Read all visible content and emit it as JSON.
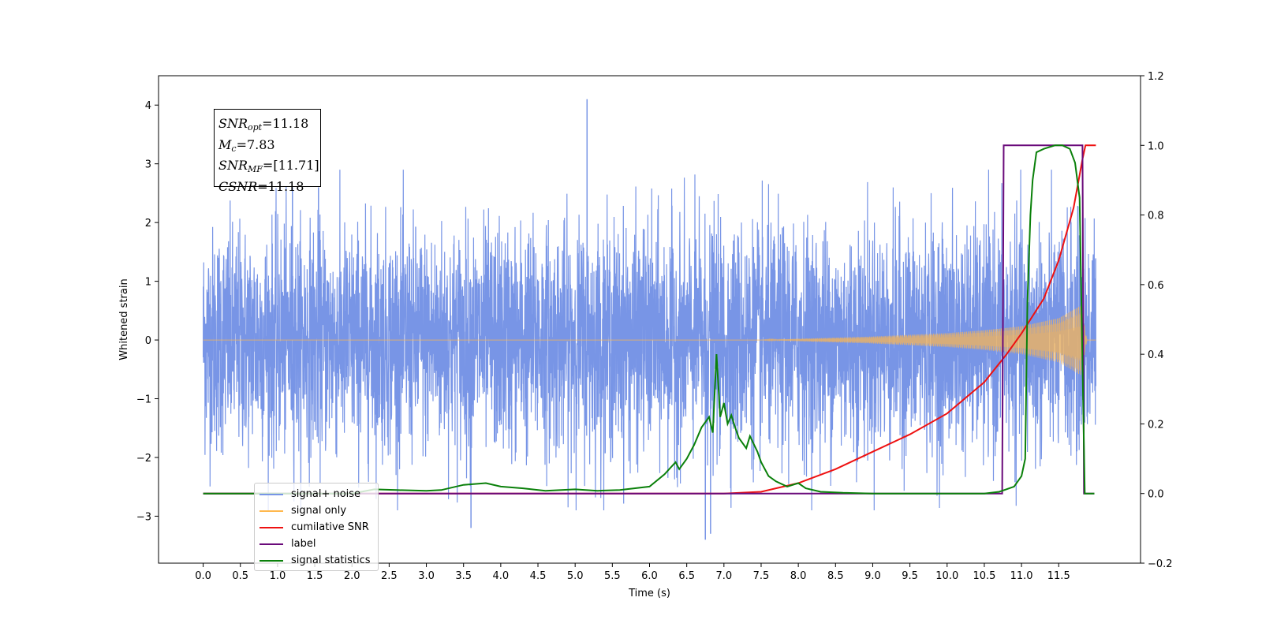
{
  "chart_data": {
    "type": "line",
    "xlabel": "Time (s)",
    "ylabel": "Whitened strain",
    "x_ticks": [
      "0.0",
      "0.5",
      "1.0",
      "1.5",
      "2.0",
      "2.5",
      "3.0",
      "3.5",
      "4.0",
      "4.5",
      "5.0",
      "5.5",
      "6.0",
      "6.5",
      "7.0",
      "7.5",
      "8.0",
      "8.5",
      "9.0",
      "9.5",
      "10.0",
      "10.5",
      "11.0",
      "11.5"
    ],
    "y_left_ticks": [
      "4",
      "3",
      "2",
      "1",
      "0",
      "−1",
      "−2",
      "−3"
    ],
    "y_right_ticks": [
      "1.2",
      "1.0",
      "0.8",
      "0.6",
      "0.4",
      "0.2",
      "0.0",
      "−0.2"
    ],
    "xlim": [
      -0.6,
      12.6
    ],
    "ylim_left": [
      -3.8,
      4.5
    ],
    "ylim_right": [
      -0.2,
      1.2
    ],
    "annotations": {
      "snr_opt": "11.18",
      "mc": "7.83",
      "snr_mf": "[11.71]",
      "csnr": "11.18"
    },
    "legend": [
      "signal+ noise",
      "signal only",
      "cumilative SNR",
      "label",
      "signal statistics"
    ],
    "legend_placement": "lower-left",
    "colors": {
      "signal_noise": "#7895e6",
      "signal_only": "#ffb84d",
      "cumulative_snr": "#ee1111",
      "label": "#6a0a7a",
      "signal_statistics": "#0a800a"
    },
    "series": [
      {
        "name": "signal+ noise",
        "axis": "left",
        "description_values": {
          "x_range": [
            0.0,
            12.0
          ],
          "approx_std": 0.95,
          "max_spike": [
            5.16,
            4.1
          ],
          "min_spike": [
            6.75,
            -3.4
          ]
        }
      },
      {
        "name": "signal only",
        "axis": "left",
        "envelope": {
          "x": [
            0.0,
            7.5,
            8.0,
            9.0,
            10.0,
            10.5,
            11.0,
            11.5,
            11.8,
            11.88,
            12.0
          ],
          "amp": [
            0.0,
            0.0,
            0.02,
            0.06,
            0.12,
            0.17,
            0.24,
            0.38,
            0.6,
            0.0,
            0.0
          ]
        }
      },
      {
        "name": "cumilative SNR",
        "axis": "right",
        "x": [
          0.0,
          7.0,
          7.5,
          8.0,
          8.5,
          9.0,
          9.5,
          10.0,
          10.5,
          10.8,
          11.0,
          11.3,
          11.5,
          11.7,
          11.82,
          11.86,
          11.88,
          12.0
        ],
        "y": [
          0.0,
          0.0,
          0.005,
          0.03,
          0.07,
          0.12,
          0.17,
          0.23,
          0.32,
          0.4,
          0.46,
          0.56,
          0.67,
          0.82,
          0.96,
          1.0,
          1.0,
          1.0
        ]
      },
      {
        "name": "label",
        "axis": "right",
        "x": [
          0.0,
          10.74,
          10.76,
          11.82,
          11.84,
          11.98
        ],
        "y": [
          0.0,
          0.0,
          1.0,
          1.0,
          0.0,
          0.0
        ]
      },
      {
        "name": "signal statistics",
        "axis": "right",
        "x": [
          0.0,
          2.0,
          2.3,
          2.6,
          3.0,
          3.2,
          3.5,
          3.8,
          4.0,
          4.3,
          4.6,
          5.0,
          5.3,
          5.6,
          6.0,
          6.2,
          6.35,
          6.4,
          6.5,
          6.6,
          6.7,
          6.8,
          6.85,
          6.9,
          6.95,
          7.0,
          7.05,
          7.1,
          7.15,
          7.2,
          7.3,
          7.35,
          7.45,
          7.5,
          7.6,
          7.7,
          7.85,
          8.0,
          8.1,
          8.3,
          8.6,
          9.0,
          9.5,
          10.0,
          10.5,
          10.7,
          10.9,
          11.0,
          11.05,
          11.08,
          11.12,
          11.15,
          11.2,
          11.3,
          11.45,
          11.55,
          11.65,
          11.72,
          11.78,
          11.85,
          11.92,
          11.98
        ],
        "y": [
          0.0,
          0.0,
          0.012,
          0.01,
          0.008,
          0.01,
          0.025,
          0.03,
          0.02,
          0.015,
          0.008,
          0.012,
          0.008,
          0.01,
          0.02,
          0.055,
          0.09,
          0.07,
          0.1,
          0.14,
          0.19,
          0.22,
          0.175,
          0.4,
          0.22,
          0.26,
          0.2,
          0.225,
          0.19,
          0.16,
          0.13,
          0.165,
          0.12,
          0.09,
          0.05,
          0.035,
          0.02,
          0.03,
          0.015,
          0.005,
          0.002,
          0.0,
          0.0,
          0.0,
          0.0,
          0.005,
          0.02,
          0.05,
          0.1,
          0.55,
          0.8,
          0.9,
          0.98,
          0.99,
          1.0,
          1.0,
          0.99,
          0.95,
          0.85,
          0.0,
          0.0,
          0.0
        ]
      }
    ]
  }
}
